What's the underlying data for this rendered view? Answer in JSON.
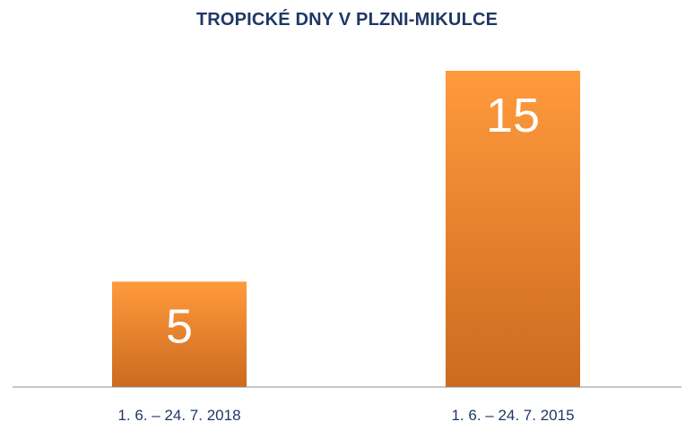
{
  "colors": {
    "title": "#1f3864",
    "bar_top": "#ff9a3c",
    "bar_bottom": "#cc6a1f",
    "axis": "#8c8c8c",
    "data_label": "#ffffff",
    "tick_text": "#1f3864"
  },
  "chart_data": {
    "type": "bar",
    "title": "TROPICKÉ DNY V PLZNI-MIKULCE",
    "xlabel": "",
    "ylabel": "",
    "categories": [
      "1. 6. – 24. 7. 2018",
      "1. 6. – 24. 7. 2015"
    ],
    "values": [
      5,
      15
    ],
    "data_labels": [
      "5",
      "15"
    ],
    "ylim": [
      0,
      15
    ],
    "grid": false,
    "legend": "none"
  }
}
